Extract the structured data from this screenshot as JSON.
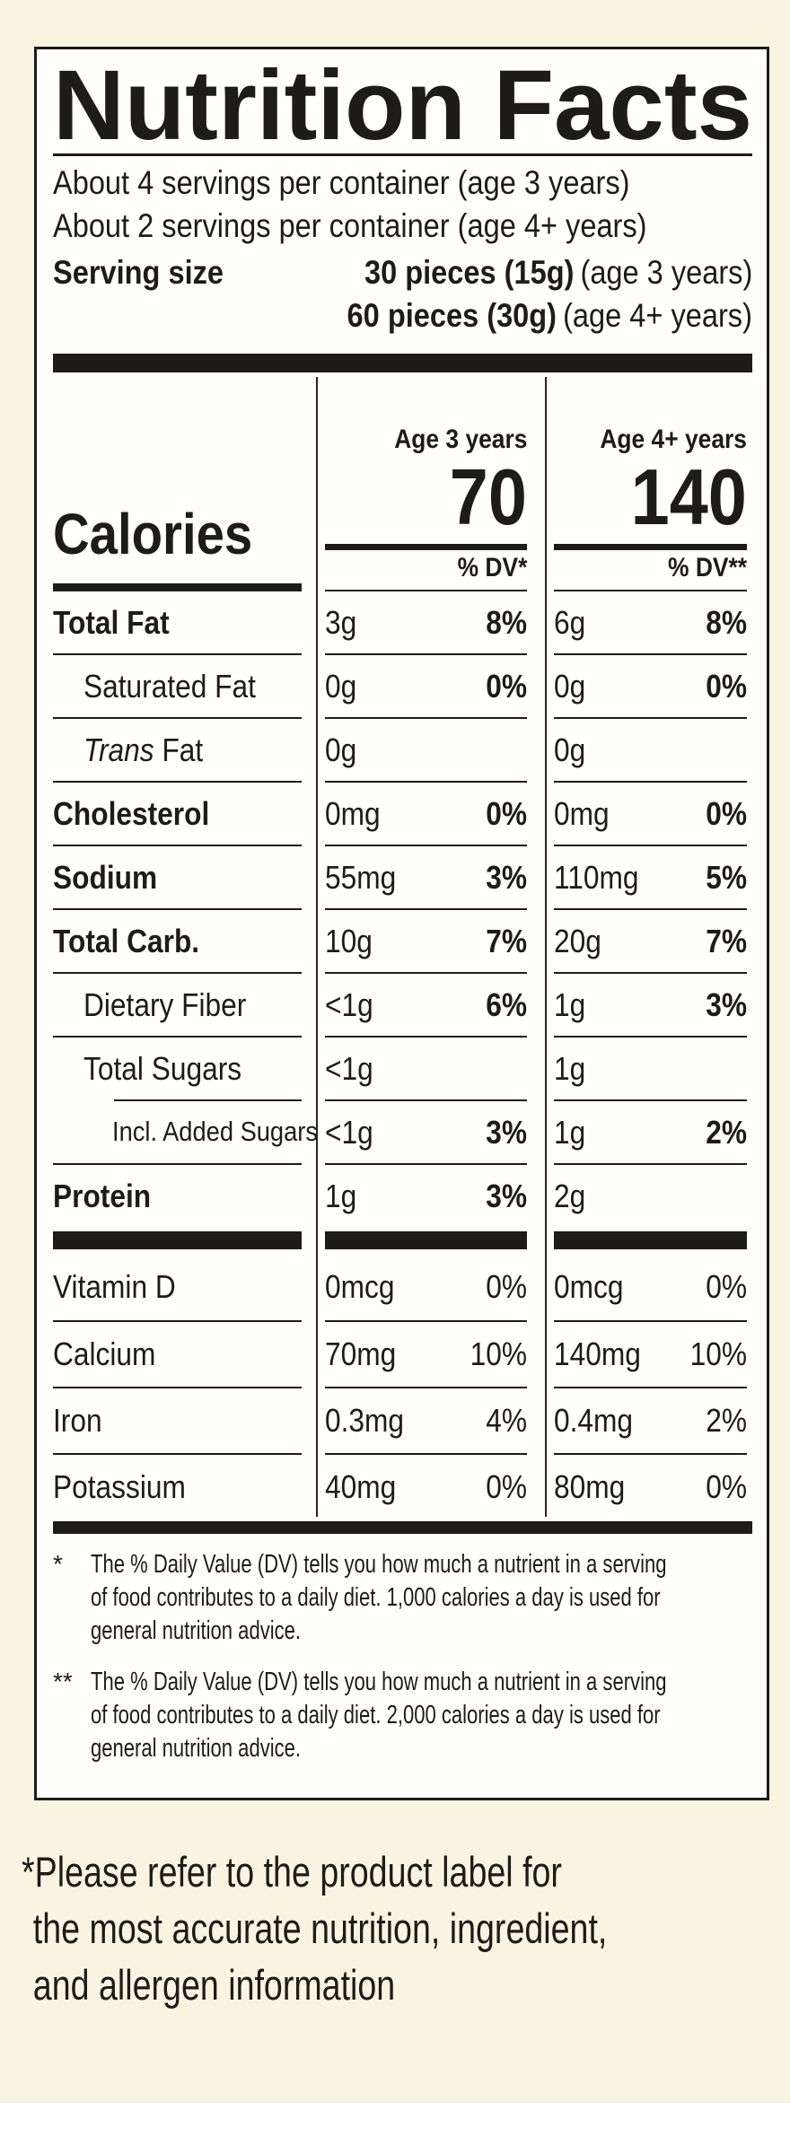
{
  "colors": {
    "background": "#f8f4e0",
    "label_bg": "#ffffff",
    "ink": "#1d1c1a"
  },
  "label": {
    "title": "Nutrition Facts",
    "servings": [
      "About 4 servings per container (age 3 years)",
      "About 2 servings per container (age 4+ years)"
    ],
    "serving_size": {
      "label": "Serving size",
      "rows": [
        {
          "bold": "30 pieces (15g)",
          "normal": "(age 3 years)"
        },
        {
          "bold": "60 pieces (30g)",
          "normal": "(age 4+ years)"
        }
      ]
    },
    "age_headers": [
      "Age 3 years",
      "Age 4+ years"
    ],
    "calories": {
      "label": "Calories",
      "value_age3": "70",
      "value_age4": "140"
    },
    "dv_headers": [
      "% DV*",
      "% DV**"
    ],
    "rows": [
      {
        "label": "Total Fat",
        "amt1": "3g",
        "dv1": "8%",
        "amt2": "6g",
        "dv2": "8%"
      },
      {
        "label": "Saturated Fat",
        "amt1": "0g",
        "dv1": "0%",
        "amt2": "0g",
        "dv2": "0%"
      },
      {
        "label_italic": "Trans",
        "label": " Fat",
        "amt1": "0g",
        "dv1": "",
        "amt2": "0g",
        "dv2": ""
      },
      {
        "label": "Cholesterol",
        "amt1": "0mg",
        "dv1": "0%",
        "amt2": "0mg",
        "dv2": "0%"
      },
      {
        "label": "Sodium",
        "amt1": "55mg",
        "dv1": "3%",
        "amt2": "110mg",
        "dv2": "5%"
      },
      {
        "label": "Total Carb.",
        "amt1": "10g",
        "dv1": "7%",
        "amt2": "20g",
        "dv2": "7%"
      },
      {
        "label": "Dietary Fiber",
        "amt1": "<1g",
        "dv1": "6%",
        "amt2": "1g",
        "dv2": "3%"
      },
      {
        "label": "Total Sugars",
        "amt1": "<1g",
        "dv1": "",
        "amt2": "1g",
        "dv2": ""
      },
      {
        "label": "Incl. Added Sugars",
        "amt1": "<1g",
        "dv1": "3%",
        "amt2": "1g",
        "dv2": "2%"
      },
      {
        "label": "Protein",
        "amt1": "1g",
        "dv1": "3%",
        "amt2": "2g",
        "dv2": ""
      },
      {
        "label": "Vitamin D",
        "amt1": "0mcg",
        "dv1": "0%",
        "amt2": "0mcg",
        "dv2": "0%"
      },
      {
        "label": "Calcium",
        "amt1": "70mg",
        "dv1": "10%",
        "amt2": "140mg",
        "dv2": "10%"
      },
      {
        "label": "Iron",
        "amt1": "0.3mg",
        "dv1": "4%",
        "amt2": "0.4mg",
        "dv2": "2%"
      },
      {
        "label": "Potassium",
        "amt1": "40mg",
        "dv1": "0%",
        "amt2": "80mg",
        "dv2": "0%"
      }
    ],
    "footnotes": [
      {
        "marker": "*",
        "lines": [
          "The % Daily Value (DV) tells you how much a nutrient in a serving",
          "of food contributes to a daily diet. 1,000 calories a day is used for",
          "general nutrition advice."
        ]
      },
      {
        "marker": "**",
        "lines": [
          "The % Daily Value (DV) tells you how much a nutrient in a serving",
          "of food contributes to a daily diet. 2,000 calories a day is used for",
          "general nutrition advice."
        ]
      }
    ]
  },
  "bottom_note": {
    "lines": [
      "*Please refer to the product label for",
      "the most accurate nutrition, ingredient,",
      "and allergen information"
    ]
  }
}
